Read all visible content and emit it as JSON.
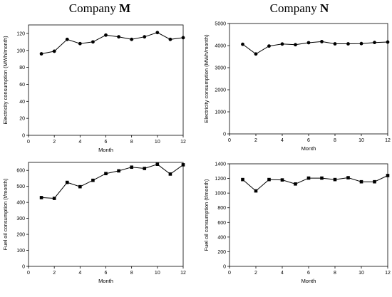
{
  "columns": [
    {
      "prefix": "Company ",
      "letter": "M"
    },
    {
      "prefix": "Company ",
      "letter": "N"
    }
  ],
  "chart_data": [
    {
      "type": "line",
      "company": "M",
      "marker": "circle",
      "xlabel": "Month",
      "ylabel": "Electricity consumption (MWh/month)",
      "xlim": [
        0,
        12
      ],
      "ylim": [
        0,
        130
      ],
      "xticks": [
        0,
        2,
        4,
        6,
        8,
        10,
        12
      ],
      "yticks": [
        0,
        20,
        40,
        60,
        80,
        100,
        120
      ],
      "x": [
        1,
        2,
        3,
        4,
        5,
        6,
        7,
        8,
        9,
        10,
        11,
        12
      ],
      "y": [
        96,
        99,
        113,
        108,
        110,
        118,
        116,
        113,
        116,
        121,
        113,
        115
      ]
    },
    {
      "type": "line",
      "company": "N",
      "marker": "circle",
      "xlabel": "Month",
      "ylabel": "Electricity consumption (MWh/month)",
      "xlim": [
        0,
        12
      ],
      "ylim": [
        0,
        5000
      ],
      "xticks": [
        0,
        2,
        4,
        6,
        8,
        10,
        12
      ],
      "yticks": [
        0,
        1000,
        2000,
        3000,
        4000,
        5000
      ],
      "x": [
        1,
        2,
        3,
        4,
        5,
        6,
        7,
        8,
        9,
        10,
        11,
        12
      ],
      "y": [
        4060,
        3620,
        3980,
        4070,
        4040,
        4130,
        4180,
        4080,
        4080,
        4090,
        4140,
        4160
      ]
    },
    {
      "type": "line",
      "company": "M",
      "marker": "square",
      "xlabel": "Month",
      "ylabel": "Fuel oil consumption (t/month)",
      "xlim": [
        0,
        12
      ],
      "ylim": [
        0,
        650
      ],
      "xticks": [
        0,
        2,
        4,
        6,
        8,
        10,
        12
      ],
      "yticks": [
        0,
        100,
        200,
        300,
        400,
        500,
        600
      ],
      "x": [
        1,
        2,
        3,
        4,
        5,
        6,
        7,
        8,
        9,
        10,
        11,
        12
      ],
      "y": [
        430,
        425,
        525,
        498,
        538,
        580,
        597,
        620,
        612,
        638,
        577,
        635
      ]
    },
    {
      "type": "line",
      "company": "N",
      "marker": "square",
      "xlabel": "Month",
      "ylabel": "Fuel oil consumption (t/month)",
      "xlim": [
        0,
        12
      ],
      "ylim": [
        0,
        1400
      ],
      "xticks": [
        0,
        2,
        4,
        6,
        8,
        10,
        12
      ],
      "yticks": [
        0,
        200,
        400,
        600,
        800,
        1000,
        1200,
        1400
      ],
      "x": [
        1,
        2,
        3,
        4,
        5,
        6,
        7,
        8,
        9,
        10,
        11,
        12
      ],
      "y": [
        1185,
        1030,
        1185,
        1180,
        1125,
        1205,
        1205,
        1185,
        1210,
        1155,
        1155,
        1240
      ]
    }
  ]
}
